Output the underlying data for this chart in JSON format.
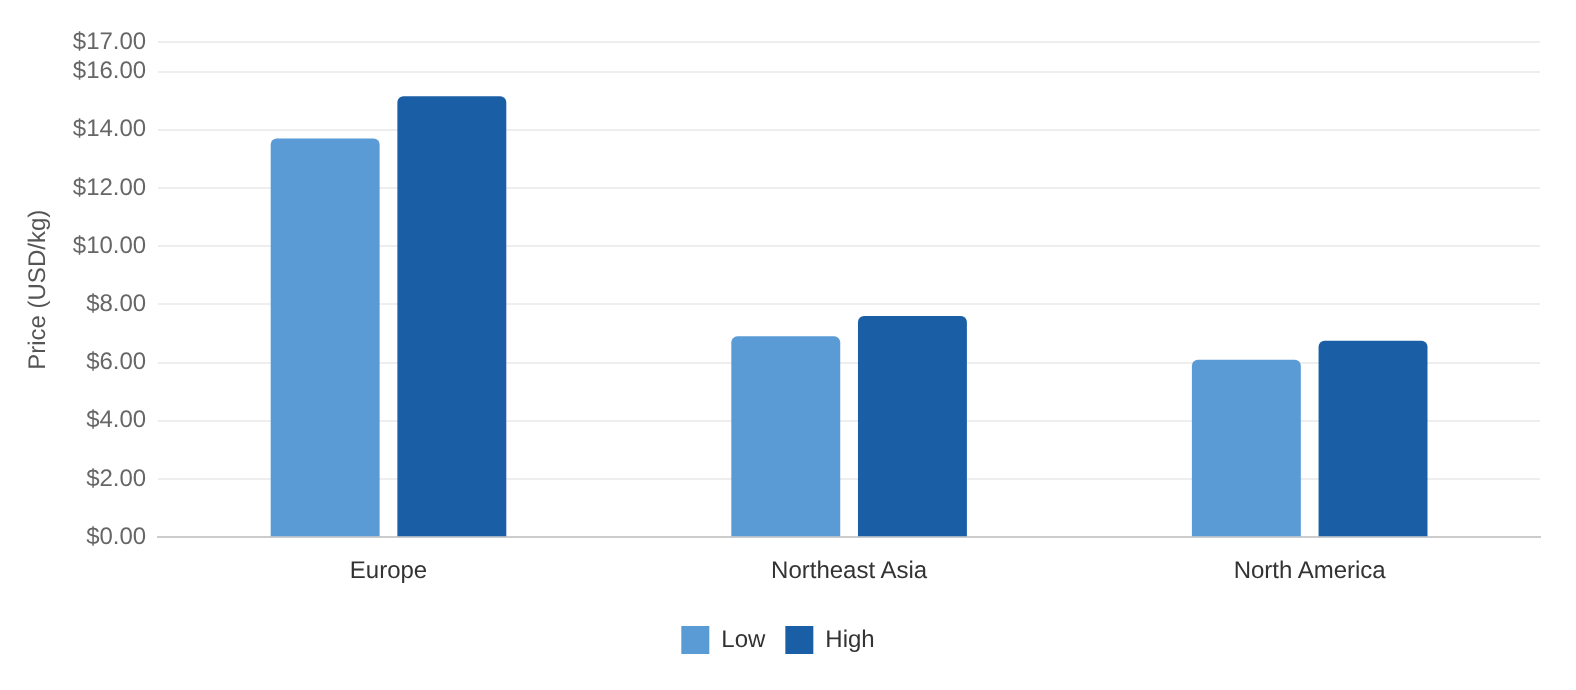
{
  "chart_data": {
    "type": "bar",
    "ylabel": "Price (USD/kg)",
    "categories": [
      "Europe",
      "Northeast Asia",
      "North America"
    ],
    "series": [
      {
        "name": "Low",
        "color": "#5b9bd5",
        "values": [
          13.7,
          6.9,
          6.1
        ]
      },
      {
        "name": "High",
        "color": "#1a5fa6",
        "values": [
          15.15,
          7.6,
          6.75
        ]
      }
    ],
    "ylim": [
      0,
      17
    ],
    "yticks": [
      {
        "value": 0,
        "label": "$0.00"
      },
      {
        "value": 2,
        "label": "$2.00"
      },
      {
        "value": 4,
        "label": "$4.00"
      },
      {
        "value": 6,
        "label": "$6.00"
      },
      {
        "value": 8,
        "label": "$8.00"
      },
      {
        "value": 10,
        "label": "$10.00"
      },
      {
        "value": 12,
        "label": "$12.00"
      },
      {
        "value": 14,
        "label": "$14.00"
      },
      {
        "value": 16,
        "label": "$16.00"
      },
      {
        "value": 17,
        "label": "$17.00"
      }
    ],
    "grid": "y",
    "legend": "bottom"
  }
}
